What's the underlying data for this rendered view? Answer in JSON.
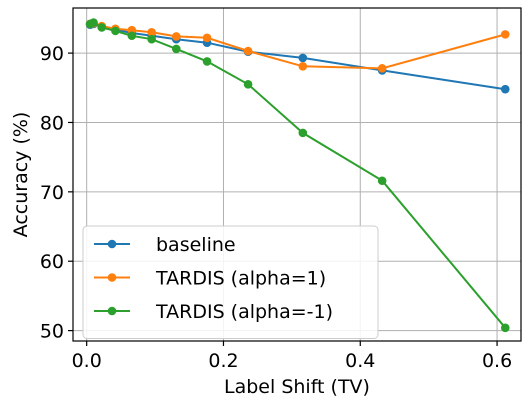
{
  "chart_data": {
    "type": "line",
    "title": "",
    "xlabel": "Label Shift (TV)",
    "ylabel": "Accuracy (%)",
    "xlim": [
      -0.02,
      0.635
    ],
    "ylim": [
      48.5,
      96.5
    ],
    "xticks": [
      0.0,
      0.2,
      0.4,
      0.6
    ],
    "xtick_labels": [
      "0.0",
      "0.2",
      "0.4",
      "0.6"
    ],
    "yticks": [
      50,
      60,
      70,
      80,
      90
    ],
    "ytick_labels": [
      "50",
      "60",
      "70",
      "80",
      "90"
    ],
    "grid": true,
    "legend_position": "lower-left",
    "series": [
      {
        "name": "baseline",
        "color": "#1f77b4",
        "x": [
          0.005,
          0.01,
          0.022,
          0.042,
          0.066,
          0.095,
          0.131,
          0.176,
          0.236,
          0.316,
          0.432,
          0.612
        ],
        "y": [
          94.1,
          94.2,
          93.8,
          93.4,
          92.9,
          92.5,
          92.0,
          91.5,
          90.2,
          89.3,
          87.5,
          84.8
        ]
      },
      {
        "name": "TARDIS (alpha=1)",
        "color": "#ff7f0e",
        "x": [
          0.005,
          0.01,
          0.022,
          0.042,
          0.066,
          0.095,
          0.131,
          0.176,
          0.236,
          0.316,
          0.432,
          0.612
        ],
        "y": [
          94.2,
          94.3,
          93.9,
          93.5,
          93.3,
          93.0,
          92.4,
          92.2,
          90.3,
          88.1,
          87.8,
          92.7
        ]
      },
      {
        "name": "TARDIS (alpha=-1)",
        "color": "#2ca02c",
        "x": [
          0.005,
          0.01,
          0.022,
          0.042,
          0.066,
          0.095,
          0.131,
          0.176,
          0.236,
          0.316,
          0.432,
          0.612
        ],
        "y": [
          94.2,
          94.4,
          93.7,
          93.2,
          92.5,
          92.0,
          90.6,
          88.8,
          85.5,
          78.5,
          71.6,
          50.4
        ]
      }
    ]
  }
}
